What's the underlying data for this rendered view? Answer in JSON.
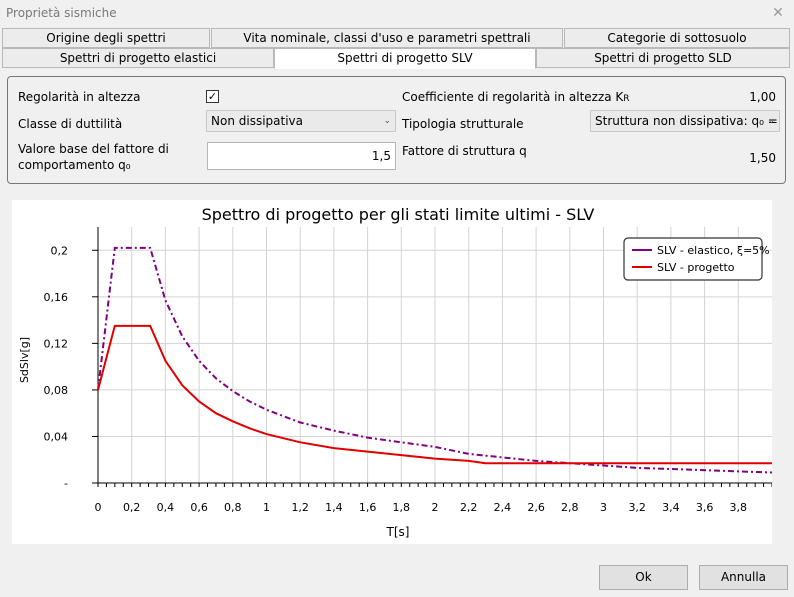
{
  "window": {
    "title": "Proprietà sismiche",
    "close_glyph": "✕"
  },
  "tabs_row1": [
    {
      "label": "Origine degli spettri"
    },
    {
      "label": "Vita nominale, classi d'uso e parametri spettrali"
    },
    {
      "label": "Categorie di sottosuolo"
    }
  ],
  "tabs_row2": [
    {
      "label": "Spettri di progetto elastici",
      "active": false
    },
    {
      "label": "Spettri di progetto SLV",
      "active": true
    },
    {
      "label": "Spettri di progetto SLD",
      "active": false
    }
  ],
  "form": {
    "regolarita_label": "Regolarità in altezza",
    "regolarita_checked": true,
    "check_glyph": "✓",
    "classe_label": "Classe di duttilità",
    "classe_value": "Non dissipativa",
    "valore_base_label_1": "Valore base del fattore di",
    "valore_base_label_2": "comportamento q₀",
    "valore_base_value": "1,5",
    "coeff_label": "Coefficiente di regolarità in altezza K",
    "coeff_sub": "R",
    "coeff_value": "1,00",
    "tipologia_label": "Tipologia strutturale",
    "tipologia_value": "Struttura non dissipativa: q₀ = '",
    "fattore_label": "Fattore di struttura q",
    "fattore_value": "1,50",
    "chevron_glyph": "⌄"
  },
  "chart_data": {
    "type": "line",
    "title": "Spettro di progetto per gli stati limite ultimi - SLV",
    "xlabel": "T[s]",
    "ylabel": "SdSlv[g]",
    "xlim": [
      0,
      4.0
    ],
    "ylim": [
      0,
      0.22
    ],
    "x_ticks": [
      "0",
      "0,2",
      "0,4",
      "0,6",
      "0,8",
      "1",
      "1,2",
      "1,4",
      "1,6",
      "1,8",
      "2",
      "2,2",
      "2,4",
      "2,6",
      "2,8",
      "3",
      "3,2",
      "3,4",
      "3,6",
      "3,8"
    ],
    "y_ticks": [
      "0,2",
      "0,16",
      "0,12",
      "0,08",
      "0,04",
      "-"
    ],
    "grid": true,
    "legend_position": "top-right",
    "series": [
      {
        "name": "SLV - elastico, ξ=5%",
        "color": "#800080",
        "dash": true,
        "points": [
          [
            0,
            0.08
          ],
          [
            0.1,
            0.202
          ],
          [
            0.31,
            0.202
          ],
          [
            0.4,
            0.157
          ],
          [
            0.5,
            0.126
          ],
          [
            0.6,
            0.105
          ],
          [
            0.7,
            0.09
          ],
          [
            0.8,
            0.079
          ],
          [
            0.9,
            0.07
          ],
          [
            1.0,
            0.063
          ],
          [
            1.2,
            0.052
          ],
          [
            1.4,
            0.045
          ],
          [
            1.6,
            0.039
          ],
          [
            1.8,
            0.035
          ],
          [
            2.0,
            0.031
          ],
          [
            2.2,
            0.025
          ],
          [
            2.4,
            0.022
          ],
          [
            2.6,
            0.019
          ],
          [
            2.8,
            0.017
          ],
          [
            3.0,
            0.015
          ],
          [
            3.2,
            0.013
          ],
          [
            3.4,
            0.012
          ],
          [
            3.6,
            0.011
          ],
          [
            3.8,
            0.01
          ],
          [
            4.0,
            0.009
          ]
        ]
      },
      {
        "name": "SLV - progetto",
        "color": "#e00000",
        "dash": false,
        "points": [
          [
            0,
            0.08
          ],
          [
            0.1,
            0.135
          ],
          [
            0.31,
            0.135
          ],
          [
            0.4,
            0.105
          ],
          [
            0.5,
            0.084
          ],
          [
            0.6,
            0.07
          ],
          [
            0.7,
            0.06
          ],
          [
            0.8,
            0.053
          ],
          [
            0.9,
            0.047
          ],
          [
            1.0,
            0.042
          ],
          [
            1.2,
            0.035
          ],
          [
            1.4,
            0.03
          ],
          [
            1.6,
            0.027
          ],
          [
            1.8,
            0.024
          ],
          [
            2.0,
            0.021
          ],
          [
            2.2,
            0.019
          ],
          [
            2.3,
            0.017
          ],
          [
            2.6,
            0.017
          ],
          [
            2.8,
            0.017
          ],
          [
            3.0,
            0.017
          ],
          [
            3.2,
            0.017
          ],
          [
            3.4,
            0.017
          ],
          [
            3.6,
            0.017
          ],
          [
            3.8,
            0.017
          ],
          [
            4.0,
            0.017
          ]
        ]
      }
    ]
  },
  "buttons": {
    "ok": "Ok",
    "cancel": "Annulla"
  }
}
